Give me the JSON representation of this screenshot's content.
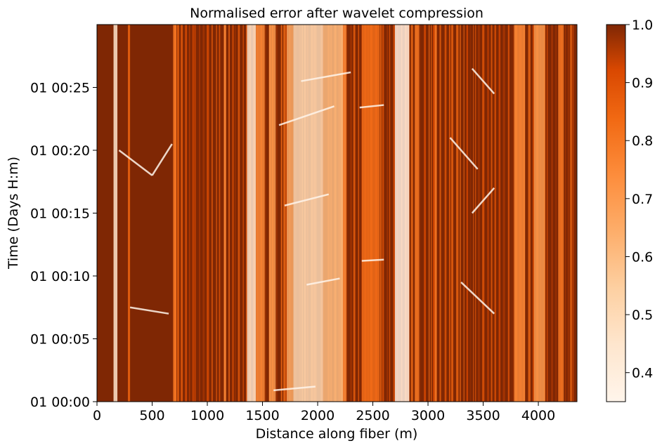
{
  "chart_data": {
    "type": "heatmap",
    "title": "Normalised error after wavelet compression",
    "xlabel": "Distance along fiber (m)",
    "ylabel": "Time (Days H:m)",
    "xlim": [
      0,
      4350
    ],
    "ylim_minutes": [
      0,
      30
    ],
    "xticks": [
      0,
      500,
      1000,
      1500,
      2000,
      2500,
      3000,
      3500,
      4000
    ],
    "xtick_labels": [
      "0",
      "500",
      "1000",
      "1500",
      "2000",
      "2500",
      "3000",
      "3500",
      "4000"
    ],
    "yticks_minutes": [
      0,
      5,
      10,
      15,
      20,
      25
    ],
    "ytick_labels": [
      "01 00:00",
      "01 00:05",
      "01 00:10",
      "01 00:15",
      "01 00:20",
      "01 00:25"
    ],
    "colorbar": {
      "colormap": "Oranges",
      "range": [
        0.35,
        1.0
      ],
      "ticks": [
        0.4,
        0.5,
        0.6,
        0.7,
        0.8,
        0.9,
        1.0
      ],
      "tick_labels": [
        "0.4",
        "0.5",
        "0.6",
        "0.7",
        "0.8",
        "0.9",
        "1.0"
      ]
    },
    "bright_bands": [
      {
        "x_start": 150,
        "x_end": 185,
        "value": 0.45
      },
      {
        "x_start": 280,
        "x_end": 300,
        "value": 0.85
      },
      {
        "x_start": 690,
        "x_end": 720,
        "value": 0.8
      },
      {
        "x_start": 1150,
        "x_end": 1170,
        "value": 0.75
      },
      {
        "x_start": 1360,
        "x_end": 1440,
        "value": 0.45
      },
      {
        "x_start": 1440,
        "x_end": 1520,
        "value": 0.75
      },
      {
        "x_start": 1560,
        "x_end": 1620,
        "value": 0.7
      },
      {
        "x_start": 1720,
        "x_end": 1780,
        "value": 0.65
      },
      {
        "x_start": 1780,
        "x_end": 2050,
        "value": 0.5
      },
      {
        "x_start": 2050,
        "x_end": 2230,
        "value": 0.6
      },
      {
        "x_start": 2230,
        "x_end": 2260,
        "value": 0.75
      },
      {
        "x_start": 2400,
        "x_end": 2560,
        "value": 0.82
      },
      {
        "x_start": 2700,
        "x_end": 2830,
        "value": 0.38
      },
      {
        "x_start": 2880,
        "x_end": 2920,
        "value": 0.8
      },
      {
        "x_start": 3060,
        "x_end": 3080,
        "value": 0.8
      },
      {
        "x_start": 3780,
        "x_end": 3880,
        "value": 0.75
      },
      {
        "x_start": 3960,
        "x_end": 4060,
        "value": 0.7
      },
      {
        "x_start": 4180,
        "x_end": 4230,
        "value": 0.8
      }
    ],
    "bright_streaks": [
      {
        "x_start": 1850,
        "x_end": 2300,
        "t_start": 25.5,
        "t_end": 26.2
      },
      {
        "x_start": 1650,
        "x_end": 2150,
        "t_start": 22.0,
        "t_end": 23.5
      },
      {
        "x_start": 1700,
        "x_end": 2100,
        "t_start": 15.6,
        "t_end": 16.5
      },
      {
        "x_start": 1900,
        "x_end": 2200,
        "t_start": 9.3,
        "t_end": 9.8
      },
      {
        "x_start": 1600,
        "x_end": 1980,
        "t_start": 0.9,
        "t_end": 1.2
      },
      {
        "x_start": 2380,
        "x_end": 2600,
        "t_start": 23.4,
        "t_end": 23.6
      },
      {
        "x_start": 2400,
        "x_end": 2600,
        "t_start": 11.2,
        "t_end": 11.3
      },
      {
        "x_start": 200,
        "x_end": 500,
        "t_start": 20.0,
        "t_end": 18.0
      },
      {
        "x_start": 500,
        "x_end": 680,
        "t_start": 18.0,
        "t_end": 20.5
      },
      {
        "x_start": 3400,
        "x_end": 3600,
        "t_start": 26.5,
        "t_end": 24.5
      },
      {
        "x_start": 3400,
        "x_end": 3600,
        "t_start": 15.0,
        "t_end": 17.0
      },
      {
        "x_start": 3300,
        "x_end": 3600,
        "t_start": 9.5,
        "t_end": 7.0
      },
      {
        "x_start": 3200,
        "x_end": 3450,
        "t_start": 21.0,
        "t_end": 18.5
      },
      {
        "x_start": 300,
        "x_end": 650,
        "t_start": 7.5,
        "t_end": 7.0
      }
    ]
  }
}
